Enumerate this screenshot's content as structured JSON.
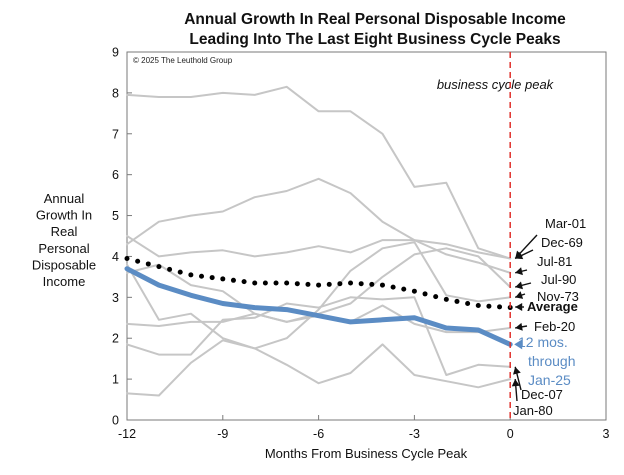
{
  "chart_data": {
    "type": "line",
    "title_lines": [
      "Annual Growth In Real Personal Disposable Income",
      "Leading Into The Last Eight Business Cycle Peaks"
    ],
    "copyright": "© 2025 The Leuthold Group",
    "xlabel": "Months From Business Cycle Peak",
    "ylabel_lines": [
      "Annual",
      "Growth In",
      "Real",
      "Personal",
      "Disposable",
      "Income"
    ],
    "xlim": [
      -12,
      3
    ],
    "ylim": [
      0,
      9
    ],
    "x_ticks": [
      "-12",
      "-9",
      "-6",
      "-3",
      "0",
      "3"
    ],
    "y_ticks": [
      "0",
      "1",
      "2",
      "3",
      "4",
      "5",
      "6",
      "7",
      "8",
      "9"
    ],
    "grid": false,
    "peak_line": {
      "x": 0,
      "label": "business cycle peak",
      "color": "#e0302b"
    },
    "x": [
      -12,
      -11,
      -10,
      -9,
      -8,
      -7,
      -6,
      -5,
      -4,
      -3,
      -2,
      -1,
      0
    ],
    "series": [
      {
        "name": "Mar-01",
        "style": "gray",
        "values": [
          7.95,
          7.9,
          7.9,
          8.0,
          7.95,
          8.15,
          7.55,
          7.55,
          7.0,
          5.7,
          5.8,
          4.2,
          3.95
        ]
      },
      {
        "name": "Dec-69",
        "style": "gray",
        "values": [
          4.5,
          4.0,
          4.1,
          4.15,
          4.0,
          4.1,
          4.25,
          4.1,
          4.4,
          4.4,
          4.3,
          4.1,
          3.95
        ]
      },
      {
        "name": "Jul-81",
        "style": "gray",
        "values": [
          4.3,
          4.85,
          5.0,
          5.1,
          5.45,
          5.6,
          5.9,
          5.55,
          4.85,
          4.4,
          4.05,
          3.85,
          3.6
        ]
      },
      {
        "name": "Jul-90",
        "style": "gray",
        "values": [
          3.6,
          3.8,
          3.3,
          3.15,
          2.6,
          2.4,
          2.6,
          2.85,
          3.5,
          4.05,
          4.2,
          4.0,
          3.25
        ]
      },
      {
        "name": "Nov-73",
        "style": "gray",
        "values": [
          3.8,
          2.45,
          2.6,
          2.0,
          1.75,
          2.0,
          2.7,
          3.65,
          4.2,
          4.35,
          3.05,
          2.9,
          3.0
        ]
      },
      {
        "name": "Feb-20",
        "style": "gray",
        "values": [
          2.35,
          2.3,
          2.4,
          2.4,
          2.6,
          2.4,
          2.55,
          2.4,
          2.8,
          2.35,
          2.15,
          2.15,
          2.25
        ]
      },
      {
        "name": "Dec-07",
        "style": "gray",
        "values": [
          1.85,
          1.6,
          1.6,
          2.45,
          2.5,
          2.85,
          2.75,
          3.0,
          2.95,
          3.0,
          1.1,
          1.35,
          1.3
        ]
      },
      {
        "name": "Jan-80",
        "style": "gray",
        "values": [
          0.65,
          0.6,
          1.4,
          1.95,
          1.75,
          1.35,
          0.9,
          1.15,
          1.85,
          1.1,
          0.95,
          0.8,
          1.0
        ]
      },
      {
        "name": "Average",
        "style": "dotted",
        "color": "#000000",
        "values": [
          3.95,
          3.75,
          3.55,
          3.45,
          3.35,
          3.35,
          3.3,
          3.35,
          3.3,
          3.15,
          2.95,
          2.8,
          2.75
        ]
      },
      {
        "name": "12 mos. through Jan-25",
        "style": "thick",
        "color": "#5b8cc4",
        "values": [
          3.7,
          3.3,
          3.05,
          2.85,
          2.75,
          2.7,
          2.55,
          2.4,
          2.45,
          2.5,
          2.25,
          2.2,
          1.85
        ]
      }
    ],
    "annotations": [
      {
        "text": "Mar-01",
        "target": 3.95
      },
      {
        "text": "Dec-69",
        "target": 3.95
      },
      {
        "text": "Jul-81",
        "target": 3.6
      },
      {
        "text": "Jul-90",
        "target": 3.25
      },
      {
        "text": "Nov-73",
        "target": 3.0
      },
      {
        "text": "Average",
        "target": 2.75,
        "bold": true
      },
      {
        "text": "Feb-20",
        "target": 2.25
      },
      {
        "text": "12 mos. through Jan-25",
        "lines": [
          "12 mos.",
          "through",
          "Jan-25"
        ],
        "target": 1.85,
        "color": "#5b8cc4"
      },
      {
        "text": "Dec-07",
        "target": 1.3
      },
      {
        "text": "Jan-80",
        "target": 1.0
      }
    ],
    "colors": {
      "gray": "#c6c6c6",
      "average": "#000000",
      "highlight": "#5b8cc4",
      "peak": "#e0302b"
    }
  }
}
